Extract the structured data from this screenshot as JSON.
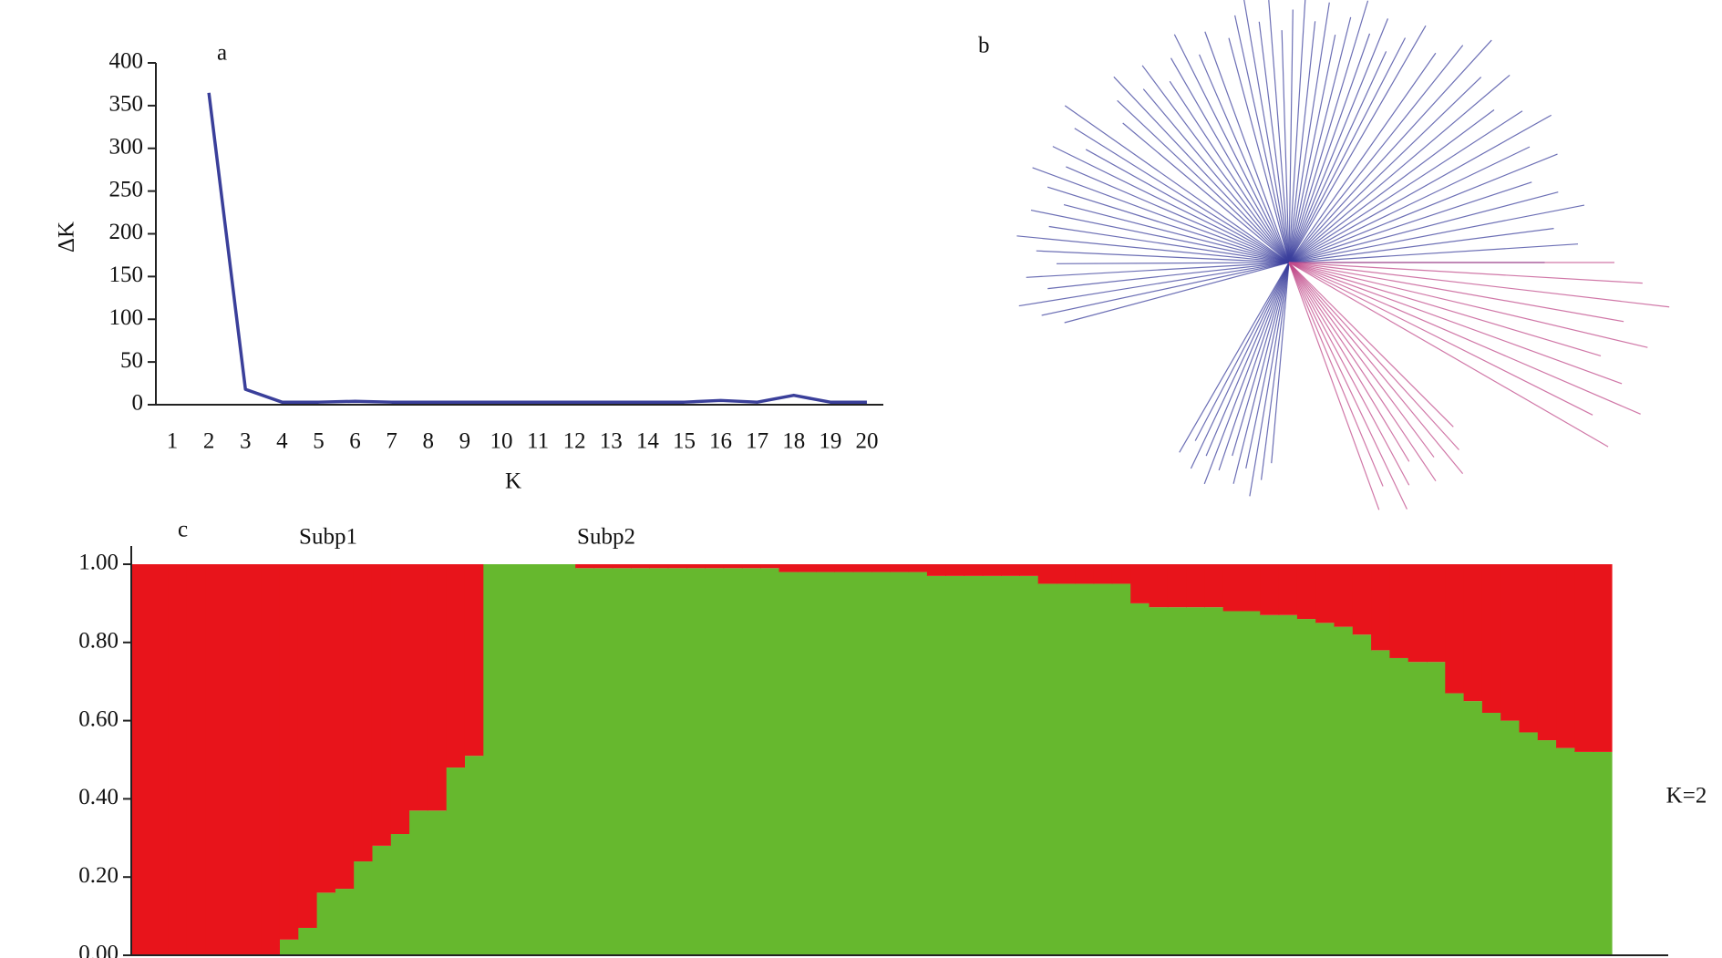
{
  "chart_data": [
    {
      "type": "line",
      "panel_label": "a",
      "x_label": "K",
      "y_label": "ΔK",
      "x": [
        1,
        2,
        3,
        4,
        5,
        6,
        7,
        8,
        9,
        10,
        11,
        12,
        13,
        14,
        15,
        16,
        17,
        18,
        19,
        20
      ],
      "series": [
        {
          "color": "#3a3f9a",
          "values": [
            null,
            365,
            18,
            3,
            3,
            4,
            3,
            3,
            3,
            3,
            3,
            3,
            3,
            3,
            3,
            5,
            3,
            11,
            3,
            3
          ]
        }
      ],
      "xlim": [
        0.55,
        20.45
      ],
      "xticks": [
        1,
        2,
        3,
        4,
        5,
        6,
        7,
        8,
        9,
        10,
        11,
        12,
        13,
        14,
        15,
        16,
        17,
        18,
        19,
        20
      ],
      "ylim": [
        0,
        400
      ],
      "yticks": [
        0,
        50,
        100,
        150,
        200,
        250,
        300,
        350,
        400
      ]
    },
    {
      "type": "stacked-bar",
      "panel_label": "c",
      "annotations": [
        "Subp1",
        "Subp2",
        "K=2"
      ],
      "series": [
        {
          "color": "#66b82e",
          "values": [
            0,
            0,
            0,
            0,
            0,
            0,
            0,
            0,
            0.04,
            0.07,
            0.16,
            0.17,
            0.24,
            0.28,
            0.31,
            0.37,
            0.37,
            0.48,
            0.51,
            1,
            1,
            1,
            1,
            1,
            0.99,
            0.99,
            0.99,
            0.99,
            0.99,
            0.99,
            0.99,
            0.99,
            0.99,
            0.99,
            0.99,
            0.98,
            0.98,
            0.98,
            0.98,
            0.98,
            0.98,
            0.98,
            0.98,
            0.97,
            0.97,
            0.97,
            0.97,
            0.97,
            0.97,
            0.95,
            0.95,
            0.95,
            0.95,
            0.95,
            0.9,
            0.89,
            0.89,
            0.89,
            0.89,
            0.88,
            0.88,
            0.87,
            0.87,
            0.86,
            0.85,
            0.84,
            0.82,
            0.78,
            0.76,
            0.75,
            0.75,
            0.67,
            0.65,
            0.62,
            0.6,
            0.57,
            0.55,
            0.53,
            0.52,
            0.52
          ]
        },
        {
          "color": "#e8141b",
          "values": [
            1,
            1,
            1,
            1,
            1,
            1,
            1,
            1,
            0.96,
            0.93,
            0.84,
            0.83,
            0.76,
            0.72,
            0.69,
            0.63,
            0.63,
            0.52,
            0.49,
            0,
            0,
            0,
            0,
            0,
            0.01,
            0.01,
            0.01,
            0.01,
            0.01,
            0.01,
            0.01,
            0.01,
            0.01,
            0.01,
            0.01,
            0.02,
            0.02,
            0.02,
            0.02,
            0.02,
            0.02,
            0.02,
            0.02,
            0.03,
            0.03,
            0.03,
            0.03,
            0.03,
            0.03,
            0.05,
            0.05,
            0.05,
            0.05,
            0.05,
            0.1,
            0.11,
            0.11,
            0.11,
            0.11,
            0.12,
            0.12,
            0.13,
            0.13,
            0.14,
            0.15,
            0.16,
            0.18,
            0.22,
            0.24,
            0.25,
            0.25,
            0.33,
            0.35,
            0.38,
            0.4,
            0.43,
            0.45,
            0.47,
            0.48,
            0.48
          ]
        }
      ],
      "ylim": [
        0,
        1
      ],
      "yticks": [
        {
          "value": 0,
          "label": "0.00"
        },
        {
          "value": 0.2,
          "label": "0.20"
        },
        {
          "value": 0.4,
          "label": "0.40"
        },
        {
          "value": 0.6,
          "label": "0.60"
        },
        {
          "value": 0.8,
          "label": "0.80"
        },
        {
          "value": 1,
          "label": "1.00"
        }
      ]
    }
  ],
  "tree": {
    "panel_label": "b"
  }
}
